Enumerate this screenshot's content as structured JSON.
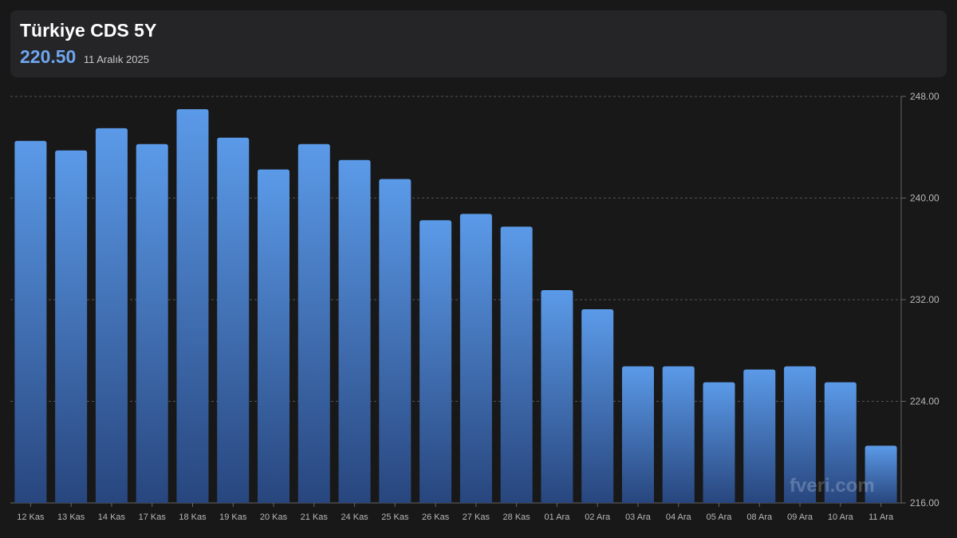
{
  "header": {
    "title": "Türkiye CDS 5Y",
    "value": "220.50",
    "date": "11 Aralık 2025"
  },
  "watermark": "fveri.com",
  "colors": {
    "background": "#181818",
    "panel": "#252527",
    "bar_top": "#5b9ae8",
    "bar_bottom": "#28467e",
    "value": "#6ea6f0",
    "grid": "#666666",
    "tick_text": "#b8b8b8"
  },
  "chart_data": {
    "type": "bar",
    "categories": [
      "12 Kas",
      "13 Kas",
      "14 Kas",
      "17 Kas",
      "18 Kas",
      "19 Kas",
      "20 Kas",
      "21 Kas",
      "24 Kas",
      "25 Kas",
      "26 Kas",
      "27 Kas",
      "28 Kas",
      "01 Ara",
      "02 Ara",
      "03 Ara",
      "04 Ara",
      "05 Ara",
      "08 Ara",
      "09 Ara",
      "10 Ara",
      "11 Ara"
    ],
    "values": [
      244.5,
      243.75,
      245.5,
      244.25,
      247.0,
      244.75,
      242.25,
      244.25,
      243.0,
      241.5,
      238.25,
      238.75,
      237.75,
      232.75,
      231.25,
      226.75,
      226.75,
      225.5,
      226.5,
      226.75,
      225.5,
      220.5
    ],
    "ylim": [
      216,
      248
    ],
    "yticks": [
      "216.00",
      "224.00",
      "232.00",
      "240.00",
      "248.00"
    ],
    "grid": true,
    "y_axis_position": "right"
  }
}
